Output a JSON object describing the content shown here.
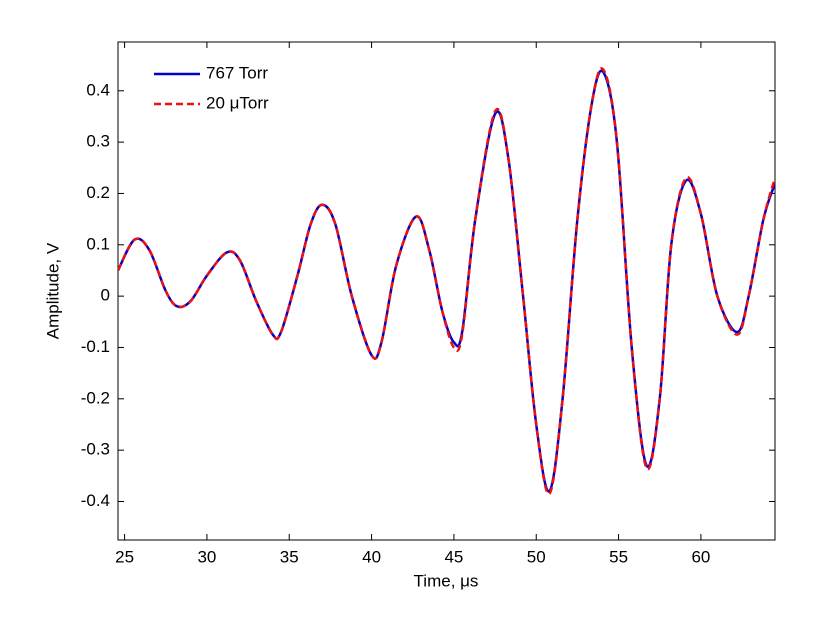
{
  "chart_data": {
    "type": "line",
    "x_label": "Time, μs",
    "y_label": "Amplitude, V",
    "x": [
      24.6,
      25.6,
      26.5,
      27.5,
      28.2,
      29,
      30,
      31.2,
      32,
      33,
      34,
      34.5,
      35.5,
      36.3,
      37,
      37.8,
      38.8,
      40,
      40.6,
      41.5,
      42.7,
      43.5,
      44.3,
      45,
      45.5,
      46.3,
      47.5,
      48.3,
      49.2,
      50,
      50.8,
      51.6,
      52.5,
      53.4,
      54.1,
      54.9,
      55.8,
      56.7,
      57.5,
      58.2,
      59.1,
      60,
      61,
      62.2,
      62.9,
      63.8,
      64.5
    ],
    "series": [
      {
        "name": "767 Torr",
        "color": "#0000cc",
        "linestyle": "solid",
        "values": [
          0.05,
          0.11,
          0.09,
          0.01,
          -0.02,
          -0.01,
          0.04,
          0.085,
          0.07,
          -0.01,
          -0.075,
          -0.07,
          0.04,
          0.14,
          0.178,
          0.14,
          0.0,
          -0.115,
          -0.09,
          0.06,
          0.155,
          0.09,
          -0.03,
          -0.09,
          -0.07,
          0.15,
          0.355,
          0.27,
          0.0,
          -0.25,
          -0.38,
          -0.2,
          0.15,
          0.38,
          0.435,
          0.3,
          -0.1,
          -0.33,
          -0.2,
          0.1,
          0.225,
          0.16,
          0.0,
          -0.07,
          0.0,
          0.15,
          0.22
        ]
      },
      {
        "name": "20 μTorr",
        "color": "#ee1111",
        "linestyle": "dashed",
        "values": [
          0.05,
          0.11,
          0.09,
          0.01,
          -0.02,
          -0.01,
          0.04,
          0.085,
          0.07,
          -0.01,
          -0.075,
          -0.07,
          0.04,
          0.14,
          0.178,
          0.14,
          0.0,
          -0.115,
          -0.09,
          0.06,
          0.155,
          0.09,
          -0.03,
          -0.1,
          -0.075,
          0.15,
          0.36,
          0.27,
          0.0,
          -0.25,
          -0.385,
          -0.2,
          0.15,
          0.38,
          0.44,
          0.3,
          -0.1,
          -0.335,
          -0.2,
          0.1,
          0.23,
          0.16,
          0.0,
          -0.075,
          0.0,
          0.15,
          0.23
        ]
      }
    ],
    "xlim": [
      24.6,
      64.5
    ],
    "ylim": [
      -0.475,
      0.495
    ],
    "xticks": [
      25,
      30,
      35,
      40,
      45,
      50,
      55,
      60
    ],
    "yticks": [
      -0.4,
      -0.3,
      -0.2,
      -0.1,
      0,
      0.1,
      0.2,
      0.3,
      0.4
    ],
    "grid": false,
    "legend": "upper left"
  }
}
